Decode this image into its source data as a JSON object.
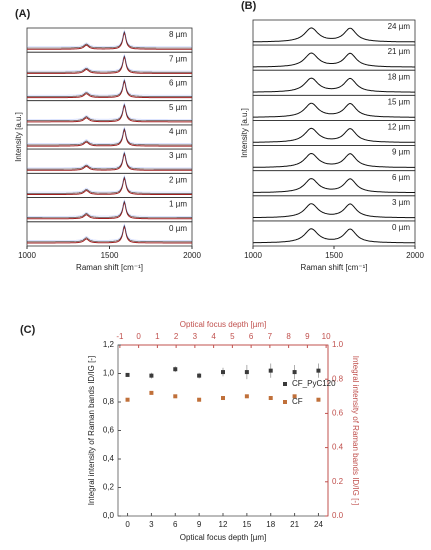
{
  "chart_data": [
    {
      "type": "line",
      "title": "(A)",
      "traces": [
        "8 µm",
        "7 µm",
        "6 µm",
        "5 µm",
        "4 µm",
        "3 µm",
        "2 µm",
        "1 µm",
        "0 µm"
      ],
      "x_label": "Raman shift [cm⁻¹]",
      "y_label": "Intensity [a.u.]",
      "xlim": [
        1000,
        2000
      ],
      "xticks": [
        1000,
        1500,
        2000
      ]
    },
    {
      "type": "line",
      "title": "(B)",
      "traces": [
        "24 µm",
        "21 µm",
        "18 µm",
        "15 µm",
        "12 µm",
        "9 µm",
        "6 µm",
        "3 µm",
        "0 µm"
      ],
      "x_label": "Raman shift [cm⁻¹]",
      "y_label": "Intensity [a.u.]",
      "xlim": [
        1000,
        2000
      ],
      "xticks": [
        1000,
        1500,
        2000
      ]
    },
    {
      "type": "scatter",
      "title": "(C)",
      "x_label": "Optical focus depth [µm]",
      "x2_label": "Optical focus depth [µm]",
      "y_label": "Integral intensity of Raman bands ID/IG [-]",
      "y2_label": "Integral intensity of Raman bands ID/IG [-]",
      "x": [
        0,
        3,
        6,
        9,
        12,
        15,
        18,
        21,
        24
      ],
      "xlim": [
        -1.2,
        25.2
      ],
      "xticks": [
        0,
        3,
        6,
        9,
        12,
        15,
        18,
        21,
        24
      ],
      "x2lim": [
        -1.1,
        10.1
      ],
      "x2ticks": [
        -1,
        0,
        1,
        2,
        3,
        4,
        5,
        6,
        7,
        8,
        9,
        10
      ],
      "ylim": [
        0,
        1.2
      ],
      "yticks": [
        {
          "value": 0,
          "label": "0,0"
        },
        {
          "value": 0.2,
          "label": "0,2"
        },
        {
          "value": 0.4,
          "label": "0,4"
        },
        {
          "value": 0.6,
          "label": "0,6"
        },
        {
          "value": 0.8,
          "label": "0,8"
        },
        {
          "value": 1.0,
          "label": "1,0"
        },
        {
          "value": 1.2,
          "label": "1,2"
        }
      ],
      "y2lim": [
        0,
        1.0
      ],
      "y2ticks": [
        {
          "value": 0,
          "label": "0.0"
        },
        {
          "value": 0.2,
          "label": "0.2"
        },
        {
          "value": 0.4,
          "label": "0.4"
        },
        {
          "value": 0.6,
          "label": "0.6"
        },
        {
          "value": 0.8,
          "label": "0.8"
        },
        {
          "value": 1.0,
          "label": "1.0"
        }
      ],
      "axis2_color": "#c0504d",
      "series": [
        {
          "name": "CF_PyC120",
          "color": "#3a3a3a",
          "values": [
            0.99,
            0.985,
            1.03,
            0.985,
            1.01,
            1.01,
            1.02,
            1.01,
            1.02
          ],
          "errors": [
            0.01,
            0.02,
            0.02,
            0.02,
            0.03,
            0.05,
            0.05,
            0.05,
            0.05
          ]
        },
        {
          "name": "CF",
          "color": "#c0703a",
          "axis": "y2",
          "values": [
            0.68,
            0.72,
            0.7,
            0.68,
            0.69,
            0.7,
            0.69,
            0.7,
            0.68
          ],
          "errors": [
            0.005,
            0.005,
            0.005,
            0.005,
            0.005,
            0.008,
            0.008,
            0.008,
            0.008
          ]
        }
      ]
    }
  ]
}
